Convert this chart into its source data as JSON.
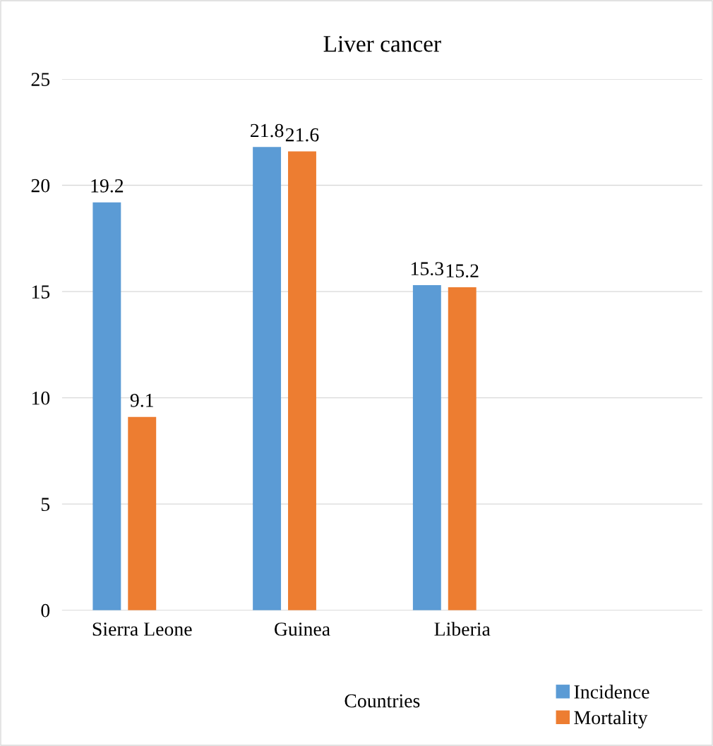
{
  "chart_data": {
    "type": "bar",
    "title": "Liver cancer",
    "xlabel": "Countries",
    "categories": [
      "Sierra Leone",
      "Guinea",
      "Liberia",
      null
    ],
    "series": [
      {
        "name": "Incidence",
        "color": "#5b9bd5",
        "values": [
          19.2,
          21.8,
          15.3,
          null
        ]
      },
      {
        "name": "Mortality",
        "color": "#ed7d31",
        "values": [
          9.1,
          21.6,
          15.2,
          null
        ]
      }
    ],
    "ylim": [
      0,
      25
    ],
    "yticks": [
      0,
      5,
      10,
      15,
      20,
      25
    ],
    "grid": "y",
    "legend": "bottom right",
    "data_labels": true
  }
}
